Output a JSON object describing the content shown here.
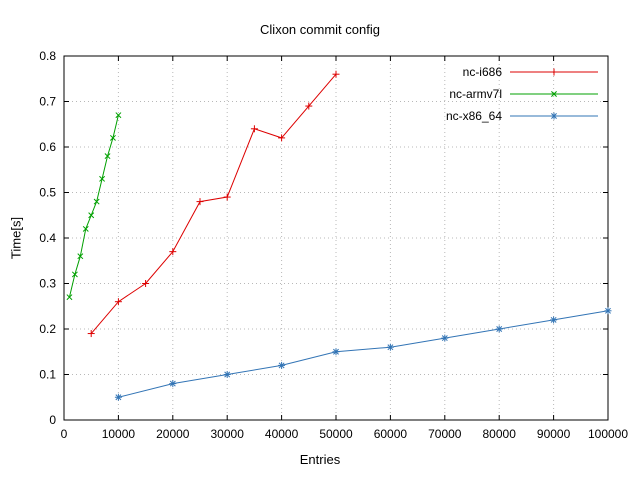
{
  "chart_data": {
    "type": "line",
    "title": "Clixon commit config",
    "xlabel": "Entries",
    "ylabel": "Time[s]",
    "xlim": [
      0,
      100000
    ],
    "ylim": [
      0,
      0.8
    ],
    "xticks": [
      0,
      10000,
      20000,
      30000,
      40000,
      50000,
      60000,
      70000,
      80000,
      90000,
      100000
    ],
    "yticks": [
      0,
      0.1,
      0.2,
      0.3,
      0.4,
      0.5,
      0.6,
      0.7,
      0.8
    ],
    "grid": true,
    "grid_color": "#b8b8b8",
    "border_color": "#000000",
    "legend_position": "top-right-inside",
    "series": [
      {
        "name": "nc-i686",
        "color": "#dd0000",
        "marker": "plus",
        "x": [
          5000,
          10000,
          15000,
          20000,
          25000,
          30000,
          35000,
          40000,
          45000,
          50000
        ],
        "y": [
          0.19,
          0.26,
          0.3,
          0.37,
          0.48,
          0.49,
          0.64,
          0.62,
          0.69,
          0.76
        ]
      },
      {
        "name": "nc-armv7l",
        "color": "#00a000",
        "marker": "x",
        "x": [
          1000,
          2000,
          3000,
          4000,
          5000,
          6000,
          7000,
          8000,
          9000,
          10000
        ],
        "y": [
          0.27,
          0.32,
          0.36,
          0.42,
          0.45,
          0.48,
          0.53,
          0.58,
          0.62,
          0.67
        ]
      },
      {
        "name": "nc-x86_64",
        "color": "#3274b5",
        "marker": "star",
        "x": [
          10000,
          20000,
          30000,
          40000,
          50000,
          60000,
          70000,
          80000,
          90000,
          100000
        ],
        "y": [
          0.05,
          0.08,
          0.1,
          0.12,
          0.15,
          0.16,
          0.18,
          0.2,
          0.22,
          0.24
        ]
      }
    ]
  }
}
